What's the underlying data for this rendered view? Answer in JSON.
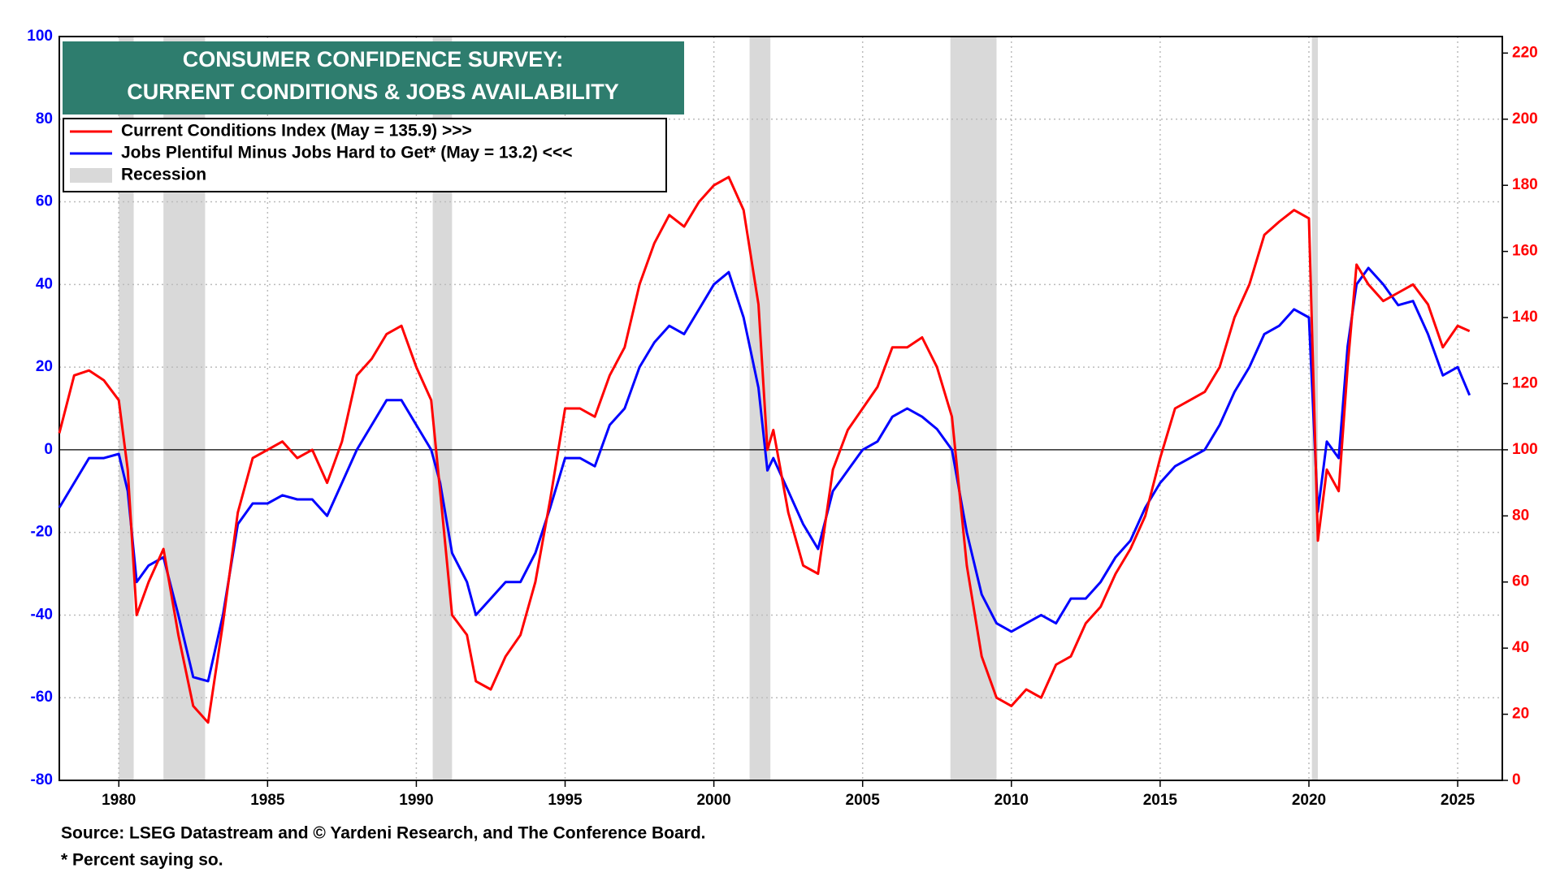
{
  "chart_data": {
    "type": "line",
    "title": [
      "CONSUMER CONFIDENCE SURVEY:",
      "CURRENT CONDITIONS & JOBS AVAILABILITY"
    ],
    "source": "Source: LSEG Datastream and © Yardeni Research, and The Conference Board.",
    "footnote": "* Percent saying so.",
    "x": [
      1978.0,
      1978.5,
      1979.0,
      1979.5,
      1980.0,
      1980.3,
      1980.6,
      1981.0,
      1981.5,
      1982.0,
      1982.5,
      1983.0,
      1983.5,
      1984.0,
      1984.5,
      1985.0,
      1985.5,
      1986.0,
      1986.5,
      1987.0,
      1987.5,
      1988.0,
      1988.5,
      1989.0,
      1989.5,
      1990.0,
      1990.5,
      1990.8,
      1991.2,
      1991.7,
      1992.0,
      1992.5,
      1993.0,
      1993.5,
      1994.0,
      1994.5,
      1995.0,
      1995.5,
      1996.0,
      1996.5,
      1997.0,
      1997.5,
      1998.0,
      1998.5,
      1999.0,
      1999.5,
      2000.0,
      2000.5,
      2001.0,
      2001.5,
      2001.8,
      2002.0,
      2002.5,
      2003.0,
      2003.5,
      2004.0,
      2004.5,
      2005.0,
      2005.5,
      2006.0,
      2006.5,
      2007.0,
      2007.5,
      2008.0,
      2008.5,
      2009.0,
      2009.5,
      2010.0,
      2010.5,
      2011.0,
      2011.5,
      2012.0,
      2012.5,
      2013.0,
      2013.5,
      2014.0,
      2014.5,
      2015.0,
      2015.5,
      2016.0,
      2016.5,
      2017.0,
      2017.5,
      2018.0,
      2018.5,
      2019.0,
      2019.5,
      2020.0,
      2020.3,
      2020.6,
      2021.0,
      2021.3,
      2021.6,
      2022.0,
      2022.5,
      2023.0,
      2023.5,
      2024.0,
      2024.5,
      2025.0,
      2025.4
    ],
    "series": [
      {
        "name": "Current Conditions Index (May = 135.9) >>>",
        "color": "#ff0000",
        "axis": "y2",
        "values": [
          105,
          122.5,
          124,
          121,
          115,
          94,
          50,
          60,
          70,
          44,
          22.5,
          17.5,
          47.5,
          81,
          97.5,
          100,
          102.5,
          97.5,
          100,
          90,
          102.5,
          122.5,
          127.5,
          135,
          137.5,
          125,
          115,
          87.5,
          50,
          44,
          30,
          27.5,
          37.5,
          44,
          60,
          85,
          112.5,
          112.5,
          110,
          122.5,
          131,
          150,
          162.5,
          171,
          167.5,
          175,
          180,
          182.5,
          172.5,
          144,
          100,
          106,
          81,
          65,
          62.5,
          94,
          106,
          112.5,
          119,
          131,
          131,
          134,
          125,
          110,
          65,
          37.5,
          25,
          22.5,
          27.5,
          25,
          35,
          37.5,
          47.5,
          52.5,
          62.5,
          70,
          80,
          97.5,
          112.5,
          115,
          117.5,
          125,
          140,
          150,
          165,
          169,
          172.5,
          170,
          72.5,
          94,
          87.5,
          125,
          156,
          150,
          145,
          147.5,
          150,
          144,
          131,
          137.5,
          135.9
        ]
      },
      {
        "name": "Jobs Plentiful Minus Jobs Hard to Get* (May = 13.2) <<<",
        "color": "#0000ff",
        "values": [
          -14,
          -8,
          -2,
          -2,
          -1,
          -10,
          -32,
          -28,
          -26,
          -40,
          -55,
          -56,
          -40,
          -18,
          -13,
          -13,
          -11,
          -12,
          -12,
          -16,
          -8,
          0,
          6,
          12,
          12,
          6,
          0,
          -8,
          -25,
          -32,
          -40,
          -36,
          -32,
          -32,
          -25,
          -14,
          -2,
          -2,
          -4,
          6,
          10,
          20,
          26,
          30,
          28,
          34,
          40,
          43,
          32,
          15,
          -5,
          -2,
          -10,
          -18,
          -24,
          -10,
          -5,
          0,
          2,
          8,
          10,
          8,
          5,
          0,
          -20,
          -35,
          -42,
          -44,
          -42,
          -40,
          -42,
          -36,
          -36,
          -32,
          -26,
          -22,
          -14,
          -8,
          -4,
          -2,
          0,
          6,
          14,
          20,
          28,
          30,
          34,
          32,
          -15,
          2,
          -2,
          25,
          40,
          44,
          40,
          35,
          36,
          28,
          18,
          20,
          13.2
        ]
      }
    ],
    "recession": {
      "name": "Recession",
      "color": "#d9d9d9",
      "periods": [
        [
          1980.0,
          1980.5
        ],
        [
          1981.5,
          1982.9
        ],
        [
          1990.55,
          1991.2
        ],
        [
          2001.2,
          2001.9
        ],
        [
          2007.95,
          2009.5
        ],
        [
          2020.1,
          2020.3
        ]
      ]
    },
    "xlim": [
      1978,
      2026.5
    ],
    "xticks": [
      1980,
      1985,
      1990,
      1995,
      2000,
      2005,
      2010,
      2015,
      2020,
      2025
    ],
    "ylim": [
      -80,
      100
    ],
    "yticks": [
      -80,
      -60,
      -40,
      -20,
      0,
      20,
      40,
      60,
      80,
      100
    ],
    "y2lim": [
      0,
      225
    ],
    "y2ticks": [
      0,
      20,
      40,
      60,
      80,
      100,
      120,
      140,
      160,
      180,
      200,
      220
    ],
    "grid": true,
    "legend": "top-left"
  }
}
